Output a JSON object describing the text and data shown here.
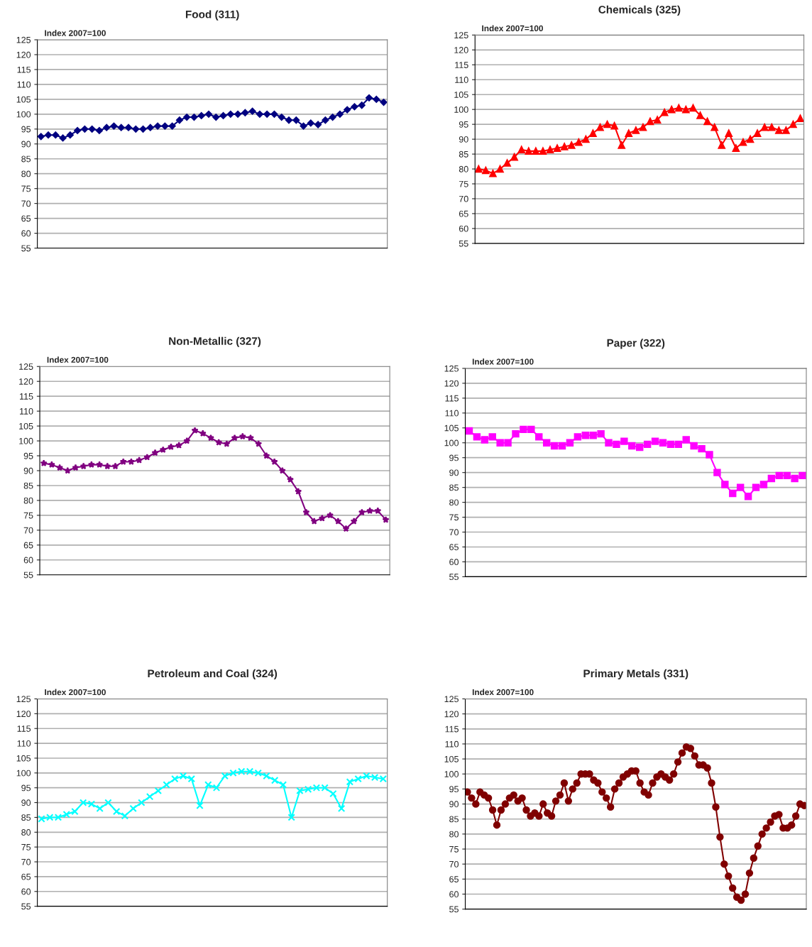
{
  "chart_data": [
    {
      "type": "line",
      "title": "Food (311)",
      "annotations": [
        "Index 2007=100"
      ],
      "ylim": [
        55,
        125
      ],
      "yticks": [
        55,
        60,
        65,
        70,
        75,
        80,
        85,
        90,
        95,
        100,
        105,
        110,
        115,
        120,
        125
      ],
      "grid": "y",
      "tick_labels": "y",
      "marker": "diamond",
      "line_style": "solid",
      "categories": [
        null,
        null,
        null,
        null,
        null,
        null,
        null,
        null,
        null,
        null,
        null,
        null,
        null,
        null,
        null,
        null,
        null,
        null,
        null,
        null,
        null,
        null,
        null,
        null,
        null,
        null,
        null,
        null,
        null,
        null,
        null,
        null,
        null,
        null,
        null,
        null,
        null,
        null,
        null,
        null,
        null,
        null,
        null,
        null,
        null,
        null,
        null,
        null
      ],
      "series": [
        {
          "color": "#000080",
          "values": [
            92.5,
            93,
            93,
            92,
            93,
            94.5,
            95,
            95,
            94.5,
            95.5,
            96,
            95.5,
            95.5,
            95,
            95,
            95.5,
            96,
            96,
            96,
            98,
            99,
            99,
            99.5,
            100,
            99,
            99.5,
            100,
            100,
            100.5,
            101,
            100,
            100,
            100,
            99,
            98,
            98,
            96,
            97,
            96.5,
            98,
            99,
            100,
            101.5,
            102.5,
            103,
            105.5,
            105,
            104
          ]
        }
      ]
    },
    {
      "type": "line",
      "title": "Chemicals (325)",
      "annotations": [
        "Index 2007=100"
      ],
      "ylim": [
        55,
        125
      ],
      "yticks": [
        55,
        60,
        65,
        70,
        75,
        80,
        85,
        90,
        95,
        100,
        105,
        110,
        115,
        120,
        125
      ],
      "grid": "y",
      "tick_labels": "y",
      "marker": "triangle",
      "line_style": "solid",
      "categories": [
        null,
        null,
        null,
        null,
        null,
        null,
        null,
        null,
        null,
        null,
        null,
        null,
        null,
        null,
        null,
        null,
        null,
        null,
        null,
        null,
        null,
        null,
        null,
        null,
        null,
        null,
        null,
        null,
        null,
        null,
        null,
        null,
        null,
        null,
        null,
        null,
        null,
        null,
        null,
        null,
        null,
        null,
        null,
        null,
        null,
        null
      ],
      "series": [
        {
          "color": "#ff0000",
          "values": [
            80,
            79.5,
            78.5,
            80,
            82,
            84,
            86.5,
            86,
            86,
            86,
            86.5,
            87,
            87.5,
            88,
            89,
            90,
            92,
            94,
            95,
            94.5,
            88,
            92,
            93,
            94,
            96,
            96.5,
            99,
            100,
            100.5,
            100,
            100.5,
            98,
            96,
            94,
            88,
            92,
            87,
            89,
            90,
            92,
            94,
            94,
            93,
            93,
            95,
            97
          ]
        }
      ]
    },
    {
      "type": "line",
      "title": "Non-Metallic (327)",
      "annotations": [
        "Index 2007=100"
      ],
      "ylim": [
        55,
        125
      ],
      "yticks": [
        55,
        60,
        65,
        70,
        75,
        80,
        85,
        90,
        95,
        100,
        105,
        110,
        115,
        120,
        125
      ],
      "grid": "y",
      "tick_labels": "y",
      "marker": "star",
      "line_style": "solid",
      "categories": [
        null,
        null,
        null,
        null,
        null,
        null,
        null,
        null,
        null,
        null,
        null,
        null,
        null,
        null,
        null,
        null,
        null,
        null,
        null,
        null,
        null,
        null,
        null,
        null,
        null,
        null,
        null,
        null,
        null,
        null,
        null,
        null,
        null,
        null,
        null,
        null,
        null,
        null,
        null,
        null,
        null,
        null,
        null,
        null
      ],
      "series": [
        {
          "color": "#800080",
          "values": [
            92.5,
            92,
            91,
            90,
            91,
            91.5,
            92,
            92,
            91.5,
            91.5,
            93,
            93,
            93.5,
            94.5,
            96,
            97,
            98,
            98.5,
            100,
            103.5,
            102.5,
            101,
            99.5,
            99,
            101,
            101.5,
            101,
            99,
            95,
            93,
            90,
            87,
            83,
            76,
            73,
            74,
            75,
            73,
            70.5,
            73,
            76,
            76.5,
            76.5,
            73.5
          ]
        }
      ]
    },
    {
      "type": "line",
      "title": "Paper (322)",
      "annotations": [
        "Index 2007=100"
      ],
      "ylim": [
        55,
        125
      ],
      "yticks": [
        55,
        60,
        65,
        70,
        75,
        80,
        85,
        90,
        95,
        100,
        105,
        110,
        115,
        120,
        125
      ],
      "grid": "y",
      "tick_labels": "y",
      "marker": "square",
      "line_style": "solid",
      "categories": [
        null,
        null,
        null,
        null,
        null,
        null,
        null,
        null,
        null,
        null,
        null,
        null,
        null,
        null,
        null,
        null,
        null,
        null,
        null,
        null,
        null,
        null,
        null,
        null,
        null,
        null,
        null,
        null,
        null,
        null,
        null,
        null,
        null,
        null,
        null,
        null,
        null,
        null,
        null,
        null,
        null,
        null,
        null,
        null
      ],
      "series": [
        {
          "color": "#ff00ff",
          "values": [
            104,
            102,
            101,
            102,
            100,
            100,
            103,
            104.5,
            104.5,
            102,
            100,
            99,
            99,
            100,
            102,
            102.5,
            102.5,
            103,
            100,
            99.5,
            100.5,
            99,
            98.5,
            99.5,
            100.5,
            100,
            99.5,
            99.5,
            101,
            99,
            98,
            96,
            90,
            86,
            83,
            85,
            82,
            85,
            86,
            88,
            89,
            89,
            88,
            89
          ]
        }
      ]
    },
    {
      "type": "line",
      "title": "Petroleum and Coal (324)",
      "annotations": [
        "Index 2007=100"
      ],
      "ylim": [
        55,
        125
      ],
      "yticks": [
        55,
        60,
        65,
        70,
        75,
        80,
        85,
        90,
        95,
        100,
        105,
        110,
        115,
        120,
        125
      ],
      "grid": "y",
      "tick_labels": "y",
      "marker": "cross",
      "line_style": "solid",
      "categories": [
        null,
        null,
        null,
        null,
        null,
        null,
        null,
        null,
        null,
        null,
        null,
        null,
        null,
        null,
        null,
        null,
        null,
        null,
        null,
        null,
        null,
        null,
        null,
        null,
        null,
        null,
        null,
        null,
        null,
        null,
        null,
        null,
        null,
        null,
        null,
        null,
        null,
        null,
        null,
        null,
        null,
        null
      ],
      "series": [
        {
          "color": "#00ffff",
          "values": [
            84.5,
            85,
            85,
            86,
            87,
            90,
            89.5,
            88,
            90,
            87,
            85.5,
            88,
            90,
            92,
            94,
            96,
            98,
            99,
            98,
            89,
            96,
            95,
            99,
            100,
            100.5,
            100.5,
            100,
            99,
            97.5,
            96,
            85,
            94,
            94.5,
            95,
            95,
            93,
            88,
            97,
            98,
            99,
            98.5,
            98
          ]
        }
      ]
    },
    {
      "type": "line",
      "title": "Primary Metals (331)",
      "annotations": [
        "Index 2007=100"
      ],
      "ylim": [
        55,
        125
      ],
      "yticks": [
        55,
        60,
        65,
        70,
        75,
        80,
        85,
        90,
        95,
        100,
        105,
        110,
        115,
        120,
        125
      ],
      "grid": "y",
      "tick_labels": "y",
      "marker": "circle",
      "line_style": "solid",
      "categories": [
        null,
        null,
        null,
        null,
        null,
        null,
        null,
        null,
        null,
        null,
        null,
        null,
        null,
        null,
        null,
        null,
        null,
        null,
        null,
        null,
        null,
        null,
        null,
        null,
        null,
        null,
        null,
        null,
        null,
        null,
        null,
        null,
        null,
        null,
        null,
        null,
        null,
        null,
        null,
        null,
        null,
        null,
        null,
        null,
        null,
        null,
        null,
        null,
        null,
        null,
        null,
        null,
        null,
        null,
        null,
        null,
        null,
        null,
        null,
        null,
        null,
        null,
        null,
        null,
        null,
        null,
        null,
        null,
        null,
        null,
        null,
        null,
        null,
        null,
        null,
        null,
        null,
        null,
        null,
        null,
        null
      ],
      "series": [
        {
          "color": "#800000",
          "values": [
            94,
            92,
            90,
            94,
            93,
            92,
            88,
            83,
            88,
            90,
            92,
            93,
            91,
            92,
            88,
            86,
            87,
            86,
            90,
            87,
            86,
            91,
            93,
            97,
            91,
            95,
            97,
            100,
            100,
            100,
            98,
            97,
            94,
            92,
            89,
            95,
            97,
            99,
            100,
            101,
            101,
            97,
            94,
            93,
            97,
            99,
            100,
            99,
            98,
            100,
            104,
            107,
            109,
            108.5,
            106,
            103,
            103,
            102,
            97,
            89,
            79,
            70,
            66,
            62,
            59,
            58,
            60,
            67,
            72,
            76,
            80,
            82,
            84,
            86,
            86.5,
            82,
            82,
            83,
            86,
            90,
            89.5
          ]
        }
      ]
    }
  ]
}
